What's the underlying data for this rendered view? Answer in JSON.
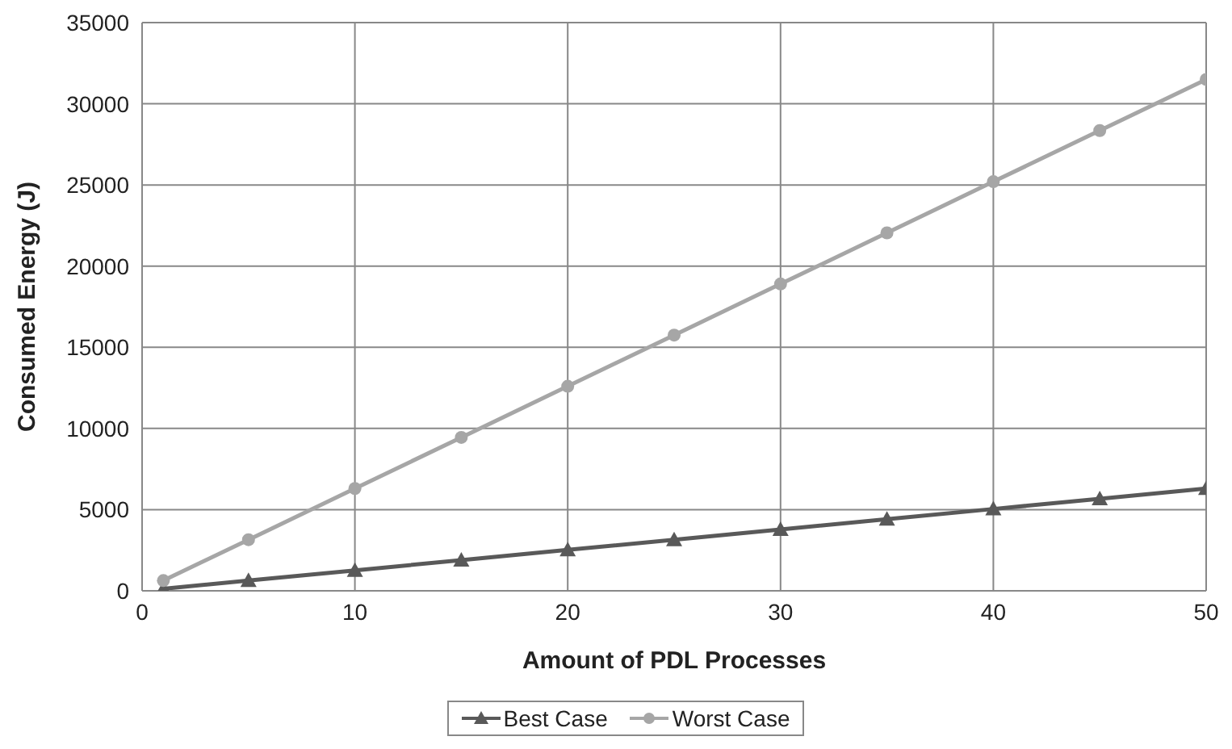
{
  "chart_data": {
    "type": "line",
    "xlabel": "Amount of PDL Processes",
    "ylabel": "Consumed Energy (J)",
    "x": [
      1,
      5,
      10,
      15,
      20,
      25,
      30,
      35,
      40,
      45,
      50
    ],
    "series": [
      {
        "name": "Best Case",
        "color": "#595959",
        "marker": "triangle",
        "values": [
          126,
          630,
          1260,
          1890,
          2520,
          3150,
          3780,
          4410,
          5040,
          5670,
          6300
        ]
      },
      {
        "name": "Worst Case",
        "color": "#a6a6a6",
        "marker": "circle",
        "values": [
          630,
          3150,
          6300,
          9450,
          12600,
          15750,
          18900,
          22050,
          25200,
          28350,
          31500
        ]
      }
    ],
    "xlim": [
      0,
      50
    ],
    "xticks": [
      0,
      10,
      20,
      30,
      40,
      50
    ],
    "ylim": [
      0,
      35000
    ],
    "yticks": [
      0,
      5000,
      10000,
      15000,
      20000,
      25000,
      30000,
      35000
    ],
    "grid": true,
    "legend": "bottom"
  }
}
